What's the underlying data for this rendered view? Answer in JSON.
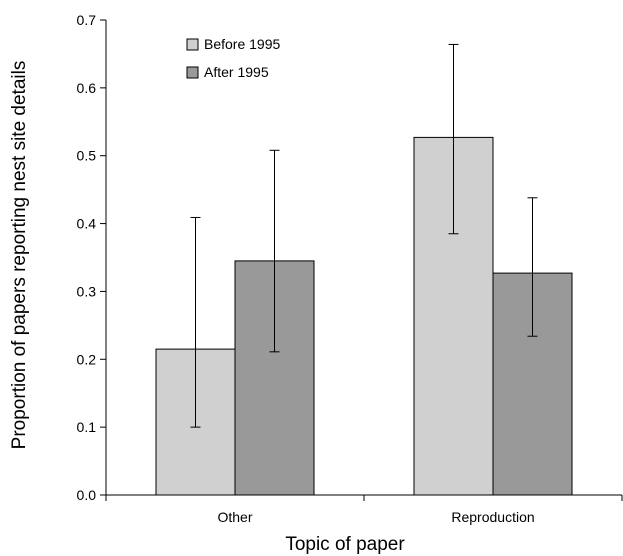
{
  "chart_data": {
    "type": "bar",
    "title": "",
    "xlabel": "Topic of paper",
    "ylabel": "Proportion of papers reporting nest site details",
    "ylim": [
      0,
      0.7
    ],
    "yticks": [
      "0.0",
      "0.1",
      "0.2",
      "0.3",
      "0.4",
      "0.5",
      "0.6",
      "0.7"
    ],
    "categories": [
      "Other",
      "Reproduction"
    ],
    "series": [
      {
        "name": "Before 1995",
        "color": "#d0d0d0",
        "values": [
          0.215,
          0.527
        ],
        "error_low": [
          0.1,
          0.385
        ],
        "error_high": [
          0.409,
          0.664
        ]
      },
      {
        "name": "After 1995",
        "color": "#999999",
        "values": [
          0.345,
          0.327
        ],
        "error_low": [
          0.211,
          0.234
        ],
        "error_high": [
          0.508,
          0.438
        ]
      }
    ],
    "grid": false,
    "legend_position": "top-left"
  }
}
